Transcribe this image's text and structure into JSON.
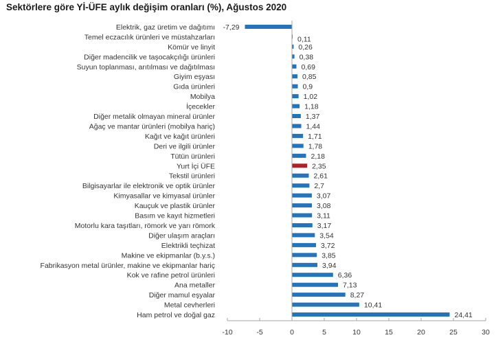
{
  "chart_data": {
    "type": "bar",
    "orientation": "horizontal",
    "title": "Sektörlere göre Yİ-ÜFE aylık değişim oranları (%), Ağustos 2020",
    "xlabel": "",
    "ylabel": "",
    "xlim": [
      -10,
      30
    ],
    "xticks": [
      "-10",
      "-5",
      "0",
      "5",
      "10",
      "15",
      "20",
      "25",
      "30"
    ],
    "xtick_values": [
      -10,
      -5,
      0,
      5,
      10,
      15,
      20,
      25,
      30
    ],
    "grid": false,
    "legend": "none",
    "colors": {
      "default": "#2473bd",
      "highlight": "#b21f24"
    },
    "categories": [
      "Elektrik, gaz üretim ve dağıtımı",
      "Temel eczacılık ürünleri ve müstahzarları",
      "Kömür ve linyit",
      "Diğer madencilik ve taşocakçılığı ürünleri",
      "Suyun toplanması, arıtılması ve dağıtılması",
      "Giyim eşyası",
      "Gıda ürünleri",
      "Mobilya",
      "İçecekler",
      "Diğer metalik olmayan mineral ürünler",
      "Ağaç ve mantar ürünleri (mobilya hariç)",
      "Kağıt ve kağıt ürünleri",
      "Deri ve ilgili ürünler",
      "Tütün ürünleri",
      "Yurt İçi ÜFE",
      "Tekstil ürünleri",
      "Bilgisayarlar ile elektronik ve optik ürünler",
      "Kimyasallar ve kimyasal ürünler",
      "Kauçuk ve plastik ürünler",
      "Basım ve kayıt hizmetleri",
      "Motorlu kara taşıtları, römork ve yarı römork",
      "Diğer ulaşım araçları",
      "Elektrikli teçhizat",
      "Makine ve ekipmanlar (b.y.s.)",
      "Fabrikasyon metal ürünler, makine ve ekipmanlar hariç",
      "Kok ve rafine petrol ürünleri",
      "Ana metaller",
      "Diğer mamul eşyalar",
      "Metal cevherleri",
      "Ham petrol ve doğal gaz"
    ],
    "values": [
      -7.29,
      0.11,
      0.26,
      0.38,
      0.69,
      0.85,
      0.9,
      1.02,
      1.18,
      1.37,
      1.44,
      1.71,
      1.78,
      2.18,
      2.35,
      2.61,
      2.7,
      3.07,
      3.08,
      3.11,
      3.17,
      3.54,
      3.72,
      3.85,
      3.94,
      6.36,
      7.13,
      8.27,
      10.41,
      24.41
    ],
    "data_labels": [
      "-7,29",
      "0,11",
      "0,26",
      "0,38",
      "0,69",
      "0,85",
      "0,9",
      "1,02",
      "1,18",
      "1,37",
      "1,44",
      "1,71",
      "1,78",
      "2,18",
      "2,35",
      "2,61",
      "2,7",
      "3,07",
      "3,08",
      "3,11",
      "3,17",
      "3,54",
      "3,72",
      "3,85",
      "3,94",
      "6,36",
      "7,13",
      "8,27",
      "10,41",
      "24,41"
    ],
    "highlight_category": "Yurt İçi ÜFE"
  }
}
